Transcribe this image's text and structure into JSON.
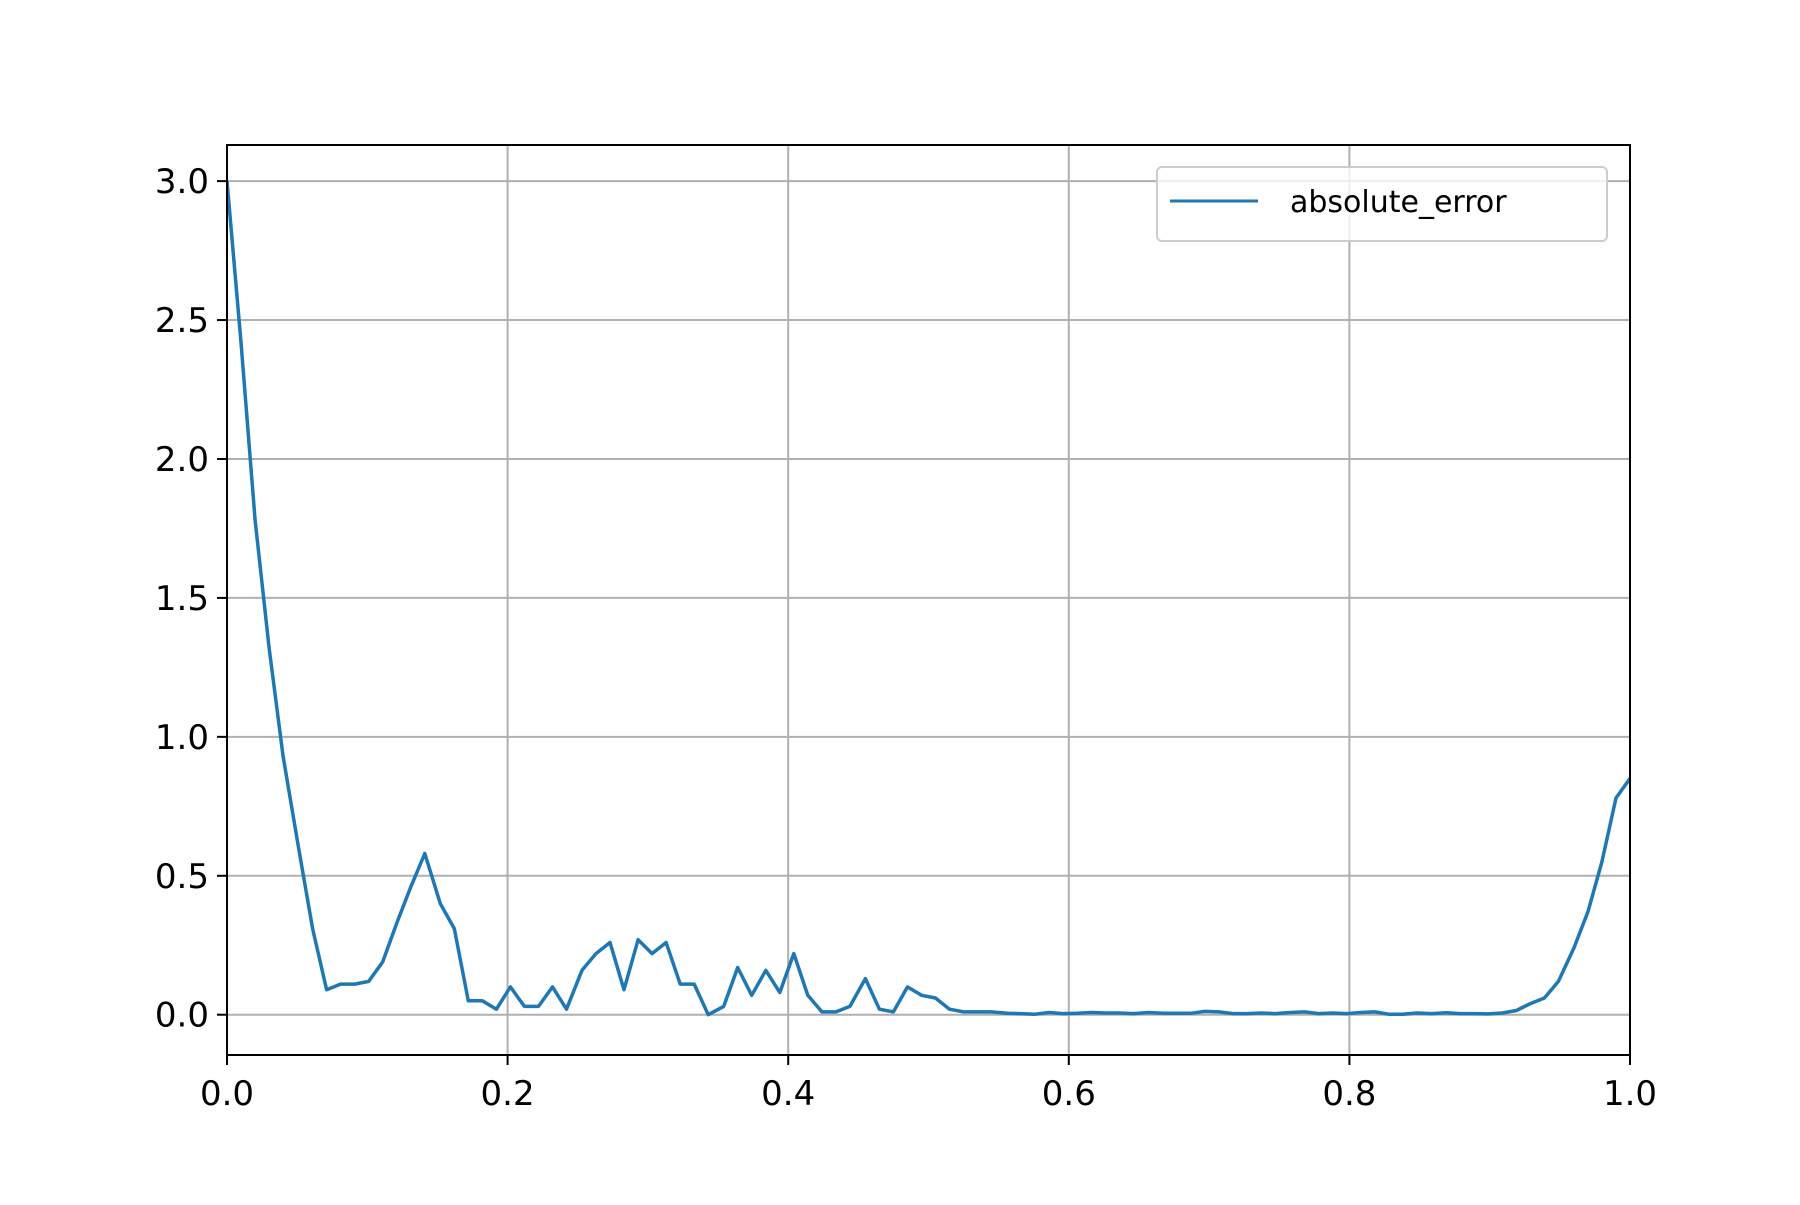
{
  "chart_data": {
    "type": "line",
    "title": "",
    "xlabel": "",
    "ylabel": "",
    "xlim": [
      0.0,
      1.0
    ],
    "ylim": [
      -0.145,
      3.13
    ],
    "grid": true,
    "legend_position": "top-right",
    "x_ticks": [
      0.0,
      0.2,
      0.4,
      0.6,
      0.8,
      1.0
    ],
    "x_tick_labels": [
      "0.0",
      "0.2",
      "0.4",
      "0.6",
      "0.8",
      "1.0"
    ],
    "y_ticks": [
      0.0,
      0.5,
      1.0,
      1.5,
      2.0,
      2.5,
      3.0
    ],
    "y_tick_labels": [
      "0.0",
      "0.5",
      "1.0",
      "1.5",
      "2.0",
      "2.5",
      "3.0"
    ],
    "series": [
      {
        "name": "absolute_error",
        "color": "#1f77b4",
        "x": [
          0.0,
          0.01,
          0.02,
          0.03,
          0.04,
          0.051,
          0.061,
          0.071,
          0.081,
          0.091,
          0.101,
          0.111,
          0.121,
          0.131,
          0.141,
          0.152,
          0.162,
          0.172,
          0.182,
          0.192,
          0.202,
          0.212,
          0.222,
          0.232,
          0.242,
          0.253,
          0.263,
          0.273,
          0.283,
          0.293,
          0.303,
          0.313,
          0.323,
          0.333,
          0.343,
          0.354,
          0.364,
          0.374,
          0.384,
          0.394,
          0.404,
          0.414,
          0.424,
          0.434,
          0.444,
          0.455,
          0.465,
          0.475,
          0.485,
          0.495,
          0.505,
          0.515,
          0.525,
          0.535,
          0.545,
          0.556,
          0.566,
          0.576,
          0.586,
          0.596,
          0.606,
          0.616,
          0.626,
          0.636,
          0.646,
          0.657,
          0.667,
          0.677,
          0.687,
          0.697,
          0.707,
          0.717,
          0.727,
          0.737,
          0.747,
          0.758,
          0.768,
          0.778,
          0.788,
          0.798,
          0.808,
          0.818,
          0.828,
          0.838,
          0.848,
          0.859,
          0.869,
          0.879,
          0.889,
          0.899,
          0.909,
          0.919,
          0.929,
          0.939,
          0.949,
          0.96,
          0.97,
          0.98,
          0.99,
          1.0
        ],
        "y": [
          3.0,
          2.42,
          1.78,
          1.32,
          0.93,
          0.6,
          0.31,
          0.09,
          0.11,
          0.11,
          0.12,
          0.19,
          0.33,
          0.46,
          0.58,
          0.4,
          0.31,
          0.05,
          0.05,
          0.02,
          0.1,
          0.03,
          0.03,
          0.1,
          0.02,
          0.16,
          0.22,
          0.26,
          0.09,
          0.27,
          0.22,
          0.26,
          0.11,
          0.11,
          0.0,
          0.03,
          0.17,
          0.07,
          0.16,
          0.08,
          0.22,
          0.07,
          0.01,
          0.01,
          0.03,
          0.13,
          0.02,
          0.01,
          0.1,
          0.07,
          0.06,
          0.02,
          0.01,
          0.01,
          0.01,
          0.005,
          0.004,
          0.002,
          0.008,
          0.004,
          0.005,
          0.008,
          0.006,
          0.006,
          0.004,
          0.008,
          0.005,
          0.005,
          0.005,
          0.012,
          0.01,
          0.004,
          0.004,
          0.006,
          0.004,
          0.008,
          0.01,
          0.004,
          0.006,
          0.004,
          0.008,
          0.01,
          0.002,
          0.002,
          0.006,
          0.004,
          0.007,
          0.004,
          0.004,
          0.003,
          0.006,
          0.015,
          0.04,
          0.06,
          0.12,
          0.24,
          0.37,
          0.55,
          0.78,
          0.85
        ]
      }
    ]
  }
}
